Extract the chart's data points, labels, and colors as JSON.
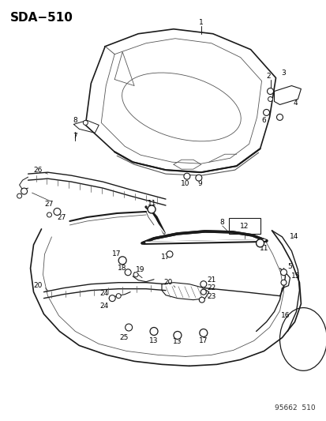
{
  "title": "SDA−510",
  "footer": "95662  510",
  "bg_color": "#ffffff",
  "title_fontsize": 11,
  "footer_fontsize": 6.5,
  "fig_width": 4.14,
  "fig_height": 5.33,
  "dpi": 100,
  "line_color": "#1a1a1a",
  "gray_color": "#555555",
  "light_gray": "#888888"
}
